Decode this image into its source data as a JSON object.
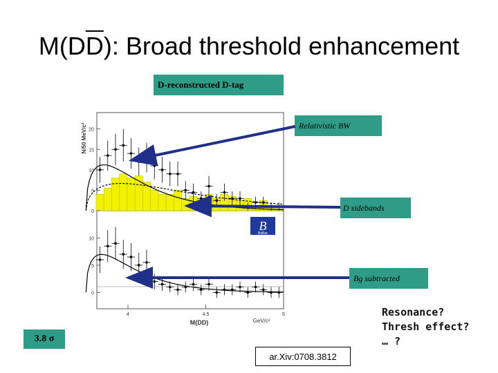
{
  "slide": {
    "title_prefix": "M(D",
    "title_bar": "D",
    "title_suffix": "): Broad threshold enhancement",
    "header_box": "D-reconstructed  D-tag",
    "label_bw": "Relativistic BW",
    "label_sidebands": "D sidebands",
    "label_bg": "Bg subtracted",
    "significance": "3.8 σ",
    "notes": [
      "Resonance?",
      "Thresh effect?",
      "… ?"
    ],
    "reference": "ar.Xiv:0708.3812",
    "logo_text": "BaBar",
    "colors": {
      "teal": "#2e9c86",
      "yellow": "#f2f200",
      "arrow": "#1f2f8a"
    }
  },
  "chart_data": [
    {
      "type": "bar",
      "panel": "upper",
      "ylabel": "N/50 MeV/c²",
      "yticks": [
        "0",
        "5",
        "10",
        "15",
        "20"
      ],
      "xlabel": "",
      "x_unit": "GeV/c²",
      "x": [
        3.82,
        3.87,
        3.92,
        3.97,
        4.02,
        4.07,
        4.12,
        4.17,
        4.22,
        4.27,
        4.32,
        4.37,
        4.42,
        4.47,
        4.52,
        4.57,
        4.62,
        4.67,
        4.72,
        4.77,
        4.82,
        4.87,
        4.92,
        4.97
      ],
      "series": [
        {
          "name": "D sidebands",
          "values": [
            4,
            5.5,
            8,
            9,
            8,
            8.5,
            7,
            5,
            4,
            4,
            5,
            3,
            3.5,
            3,
            4,
            3,
            4,
            3.5,
            2.5,
            3,
            1,
            2.5,
            1,
            0.5
          ]
        },
        {
          "name": "",
          "values": [
            10,
            13.5,
            15,
            16,
            14,
            12,
            13,
            11,
            10,
            9,
            9,
            5,
            4.5,
            3,
            6,
            2.5,
            4.5,
            3,
            3,
            1,
            2,
            2,
            1,
            1
          ]
        }
      ]
    },
    {
      "type": "scatter",
      "panel": "lower",
      "ylabel": "",
      "yticks": [
        "0",
        "5",
        "10"
      ],
      "xticks": [
        "4",
        "4.5",
        "5"
      ],
      "xlabel": "M(DD)",
      "x_unit": "GeV/c²",
      "x": [
        3.82,
        3.87,
        3.92,
        3.97,
        4.02,
        4.07,
        4.12,
        4.17,
        4.22,
        4.27,
        4.32,
        4.37,
        4.42,
        4.47,
        4.52,
        4.57,
        4.62,
        4.67,
        4.72,
        4.77,
        4.82,
        4.87,
        4.92,
        4.97
      ],
      "series": [
        {
          "name": "Bg subtracted",
          "values": [
            6,
            8.5,
            9,
            7,
            6.5,
            5,
            5.5,
            2,
            1.5,
            1,
            0.5,
            1,
            1.5,
            0.5,
            1.5,
            0,
            0.5,
            0.5,
            1,
            0,
            1,
            0.5,
            0,
            0
          ]
        }
      ]
    }
  ]
}
